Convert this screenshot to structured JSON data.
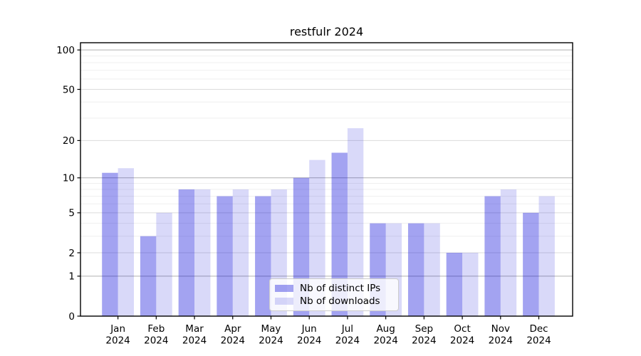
{
  "title": "restfulr 2024",
  "chart_data": {
    "type": "bar",
    "title": "restfulr 2024",
    "categories": [
      "Jan 2024",
      "Feb 2024",
      "Mar 2024",
      "Apr 2024",
      "May 2024",
      "Jun 2024",
      "Jul 2024",
      "Aug 2024",
      "Sep 2024",
      "Oct 2024",
      "Nov 2024",
      "Dec 2024"
    ],
    "series": [
      {
        "name": "Nb of distinct IPs",
        "color": "rgba(0,0,215,0.36)",
        "values": [
          11,
          3,
          8,
          7,
          7,
          10,
          16,
          4,
          4,
          2,
          7,
          5
        ]
      },
      {
        "name": "Nb of downloads",
        "color": "rgba(0,0,215,0.15)",
        "values": [
          12,
          5,
          8,
          8,
          8,
          14,
          25,
          4,
          4,
          2,
          8,
          7
        ]
      }
    ],
    "xlabel": "",
    "ylabel": "",
    "y_axis": {
      "scale": "log1p",
      "tick_labels": [
        0,
        1,
        2,
        5,
        10,
        20,
        50,
        100
      ],
      "major_gridlines": [
        1,
        10,
        100
      ],
      "mid_gridlines": [
        2,
        5,
        20,
        50
      ],
      "minor_gridlines": [
        3,
        4,
        6,
        7,
        8,
        9,
        30,
        40,
        60,
        70,
        80,
        90
      ],
      "ylim": [
        0,
        115
      ],
      "grid": "on"
    },
    "legend": {
      "position": "lower center",
      "entries": [
        "Nb of distinct IPs",
        "Nb of downloads"
      ]
    }
  },
  "colors": {
    "bar_ips": "rgba(0,0,215,0.36)",
    "bar_downloads": "rgba(0,0,215,0.15)",
    "gridline_major": "#b0b0b0",
    "gridline_mid": "#dcdcdc",
    "gridline_minor": "#efefef",
    "axis": "#000000",
    "background": "#ffffff"
  }
}
